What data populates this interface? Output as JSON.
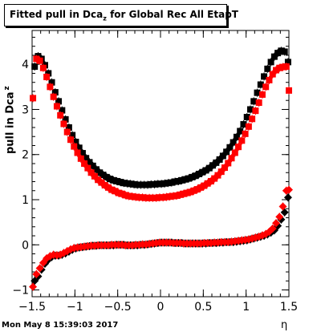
{
  "title": {
    "main": "Fitted pull in Dca",
    "sub": "z",
    "tail": " for Global Rec All EtapT"
  },
  "ylabel": {
    "main": "pull in Dca",
    "sub": "z"
  },
  "xlabel": "η",
  "footer": "Mon May  8 15:39:03 2017",
  "chart_data": {
    "type": "scatter",
    "title": "Fitted pull in Dca_z for Global Rec All EtapT",
    "xlabel": "η",
    "ylabel": "pull in Dca_z",
    "xlim": [
      -1.5,
      1.5
    ],
    "ylim": [
      -1.15,
      4.75
    ],
    "xticks": [
      -1.5,
      -1,
      -0.5,
      0,
      0.5,
      1,
      1.5
    ],
    "xtick_labels": [
      "−1.5",
      "−1",
      "−0.5",
      "0",
      "0.5",
      "1",
      "1.5"
    ],
    "yticks": [
      -1,
      0,
      1,
      2,
      3,
      4
    ],
    "ytick_labels": [
      "−1",
      "0",
      "1",
      "2",
      "3",
      "4"
    ],
    "series": [
      {
        "marker": "square",
        "color": "#000000",
        "x": [
          -1.47,
          -1.43,
          -1.39,
          -1.35,
          -1.31,
          -1.27,
          -1.23,
          -1.19,
          -1.15,
          -1.11,
          -1.07,
          -1.03,
          -0.99,
          -0.95,
          -0.91,
          -0.87,
          -0.83,
          -0.79,
          -0.75,
          -0.71,
          -0.67,
          -0.63,
          -0.59,
          -0.55,
          -0.51,
          -0.47,
          -0.43,
          -0.39,
          -0.35,
          -0.31,
          -0.27,
          -0.23,
          -0.19,
          -0.15,
          -0.11,
          -0.07,
          -0.03,
          0.01,
          0.05,
          0.09,
          0.13,
          0.17,
          0.21,
          0.25,
          0.29,
          0.33,
          0.37,
          0.41,
          0.45,
          0.49,
          0.53,
          0.57,
          0.61,
          0.65,
          0.69,
          0.73,
          0.77,
          0.81,
          0.85,
          0.89,
          0.93,
          0.97,
          1.01,
          1.05,
          1.09,
          1.13,
          1.17,
          1.21,
          1.25,
          1.29,
          1.33,
          1.37,
          1.41,
          1.45,
          1.49
        ],
        "y": [
          3.95,
          4.18,
          4.12,
          3.98,
          3.8,
          3.6,
          3.38,
          3.18,
          2.98,
          2.78,
          2.6,
          2.43,
          2.28,
          2.15,
          2.03,
          1.92,
          1.83,
          1.75,
          1.67,
          1.6,
          1.55,
          1.5,
          1.46,
          1.43,
          1.41,
          1.39,
          1.37,
          1.36,
          1.35,
          1.34,
          1.33,
          1.33,
          1.33,
          1.33,
          1.34,
          1.34,
          1.35,
          1.35,
          1.36,
          1.37,
          1.38,
          1.4,
          1.41,
          1.43,
          1.45,
          1.47,
          1.5,
          1.53,
          1.57,
          1.61,
          1.65,
          1.7,
          1.76,
          1.82,
          1.89,
          1.97,
          2.06,
          2.16,
          2.27,
          2.39,
          2.52,
          2.67,
          2.83,
          3.0,
          3.18,
          3.37,
          3.55,
          3.73,
          3.9,
          4.05,
          4.17,
          4.25,
          4.3,
          4.28,
          4.05
        ]
      },
      {
        "marker": "square",
        "color": "#ff0000",
        "x": [
          -1.49,
          -1.45,
          -1.41,
          -1.37,
          -1.33,
          -1.29,
          -1.25,
          -1.21,
          -1.17,
          -1.13,
          -1.09,
          -1.05,
          -1.01,
          -0.97,
          -0.93,
          -0.89,
          -0.85,
          -0.81,
          -0.77,
          -0.73,
          -0.69,
          -0.65,
          -0.61,
          -0.57,
          -0.53,
          -0.49,
          -0.45,
          -0.41,
          -0.37,
          -0.33,
          -0.29,
          -0.25,
          -0.21,
          -0.17,
          -0.13,
          -0.09,
          -0.05,
          -0.01,
          0.03,
          0.07,
          0.11,
          0.15,
          0.19,
          0.23,
          0.27,
          0.31,
          0.35,
          0.39,
          0.43,
          0.47,
          0.51,
          0.55,
          0.59,
          0.63,
          0.67,
          0.71,
          0.75,
          0.79,
          0.83,
          0.87,
          0.91,
          0.95,
          0.99,
          1.03,
          1.07,
          1.11,
          1.15,
          1.19,
          1.23,
          1.27,
          1.31,
          1.35,
          1.39,
          1.43,
          1.47,
          1.5
        ],
        "y": [
          3.25,
          4.12,
          4.08,
          3.92,
          3.72,
          3.5,
          3.28,
          3.07,
          2.87,
          2.68,
          2.5,
          2.33,
          2.18,
          2.04,
          1.91,
          1.8,
          1.7,
          1.6,
          1.52,
          1.44,
          1.38,
          1.32,
          1.27,
          1.22,
          1.19,
          1.15,
          1.13,
          1.1,
          1.08,
          1.07,
          1.06,
          1.05,
          1.05,
          1.04,
          1.04,
          1.04,
          1.04,
          1.05,
          1.05,
          1.06,
          1.07,
          1.08,
          1.09,
          1.11,
          1.13,
          1.15,
          1.17,
          1.2,
          1.23,
          1.27,
          1.31,
          1.36,
          1.41,
          1.47,
          1.54,
          1.62,
          1.71,
          1.81,
          1.92,
          2.04,
          2.17,
          2.31,
          2.46,
          2.62,
          2.79,
          2.97,
          3.15,
          3.33,
          3.5,
          3.65,
          3.78,
          3.87,
          3.92,
          3.94,
          3.95,
          3.42
        ]
      },
      {
        "marker": "diamond",
        "color": "#000000",
        "x": [
          -1.47,
          -1.43,
          -1.39,
          -1.35,
          -1.31,
          -1.27,
          -1.23,
          -1.19,
          -1.15,
          -1.11,
          -1.07,
          -1.03,
          -0.99,
          -0.95,
          -0.91,
          -0.87,
          -0.83,
          -0.79,
          -0.75,
          -0.71,
          -0.67,
          -0.63,
          -0.59,
          -0.55,
          -0.51,
          -0.47,
          -0.43,
          -0.39,
          -0.35,
          -0.31,
          -0.27,
          -0.23,
          -0.19,
          -0.15,
          -0.11,
          -0.07,
          -0.03,
          0.01,
          0.05,
          0.09,
          0.13,
          0.17,
          0.21,
          0.25,
          0.29,
          0.33,
          0.37,
          0.41,
          0.45,
          0.49,
          0.53,
          0.57,
          0.61,
          0.65,
          0.69,
          0.73,
          0.77,
          0.81,
          0.85,
          0.89,
          0.93,
          0.97,
          1.01,
          1.05,
          1.09,
          1.13,
          1.17,
          1.21,
          1.25,
          1.29,
          1.33,
          1.37,
          1.41,
          1.45,
          1.49
        ],
        "y": [
          -0.8,
          -0.7,
          -0.55,
          -0.42,
          -0.33,
          -0.27,
          -0.24,
          -0.24,
          -0.22,
          -0.19,
          -0.15,
          -0.11,
          -0.08,
          -0.06,
          -0.05,
          -0.04,
          -0.03,
          -0.02,
          -0.02,
          -0.01,
          -0.01,
          -0.01,
          -0.01,
          -0.01,
          0.0,
          0.0,
          0.0,
          -0.01,
          -0.01,
          -0.01,
          -0.01,
          0.0,
          0.0,
          0.01,
          0.02,
          0.03,
          0.04,
          0.05,
          0.05,
          0.05,
          0.05,
          0.04,
          0.04,
          0.04,
          0.03,
          0.03,
          0.03,
          0.03,
          0.03,
          0.03,
          0.03,
          0.04,
          0.04,
          0.04,
          0.05,
          0.05,
          0.06,
          0.06,
          0.06,
          0.07,
          0.08,
          0.09,
          0.1,
          0.12,
          0.14,
          0.16,
          0.18,
          0.2,
          0.23,
          0.27,
          0.32,
          0.42,
          0.56,
          0.72,
          1.05
        ]
      },
      {
        "marker": "diamond",
        "color": "#ff0000",
        "x": [
          -1.49,
          -1.45,
          -1.41,
          -1.37,
          -1.33,
          -1.29,
          -1.25,
          -1.21,
          -1.17,
          -1.13,
          -1.09,
          -1.05,
          -1.01,
          -0.97,
          -0.93,
          -0.89,
          -0.85,
          -0.81,
          -0.77,
          -0.73,
          -0.69,
          -0.65,
          -0.61,
          -0.57,
          -0.53,
          -0.49,
          -0.45,
          -0.41,
          -0.37,
          -0.33,
          -0.29,
          -0.25,
          -0.21,
          -0.17,
          -0.13,
          -0.09,
          -0.05,
          -0.01,
          0.03,
          0.07,
          0.11,
          0.15,
          0.19,
          0.23,
          0.27,
          0.31,
          0.35,
          0.39,
          0.43,
          0.47,
          0.51,
          0.55,
          0.59,
          0.63,
          0.67,
          0.71,
          0.75,
          0.79,
          0.83,
          0.87,
          0.91,
          0.95,
          0.99,
          1.03,
          1.07,
          1.11,
          1.15,
          1.19,
          1.23,
          1.27,
          1.31,
          1.35,
          1.39,
          1.43,
          1.47,
          1.5
        ],
        "y": [
          -0.93,
          -0.65,
          -0.52,
          -0.4,
          -0.3,
          -0.25,
          -0.22,
          -0.23,
          -0.22,
          -0.18,
          -0.14,
          -0.1,
          -0.07,
          -0.06,
          -0.05,
          -0.04,
          -0.03,
          -0.02,
          -0.02,
          -0.01,
          -0.01,
          -0.01,
          -0.01,
          0.0,
          0.0,
          0.0,
          0.0,
          -0.01,
          -0.01,
          -0.01,
          0.0,
          0.0,
          0.01,
          0.01,
          0.02,
          0.03,
          0.04,
          0.05,
          0.05,
          0.05,
          0.05,
          0.04,
          0.04,
          0.04,
          0.03,
          0.03,
          0.03,
          0.03,
          0.03,
          0.03,
          0.04,
          0.04,
          0.04,
          0.05,
          0.05,
          0.06,
          0.06,
          0.06,
          0.07,
          0.08,
          0.09,
          0.1,
          0.11,
          0.12,
          0.14,
          0.16,
          0.18,
          0.21,
          0.24,
          0.29,
          0.36,
          0.48,
          0.62,
          0.85,
          1.2,
          1.22
        ]
      }
    ]
  }
}
